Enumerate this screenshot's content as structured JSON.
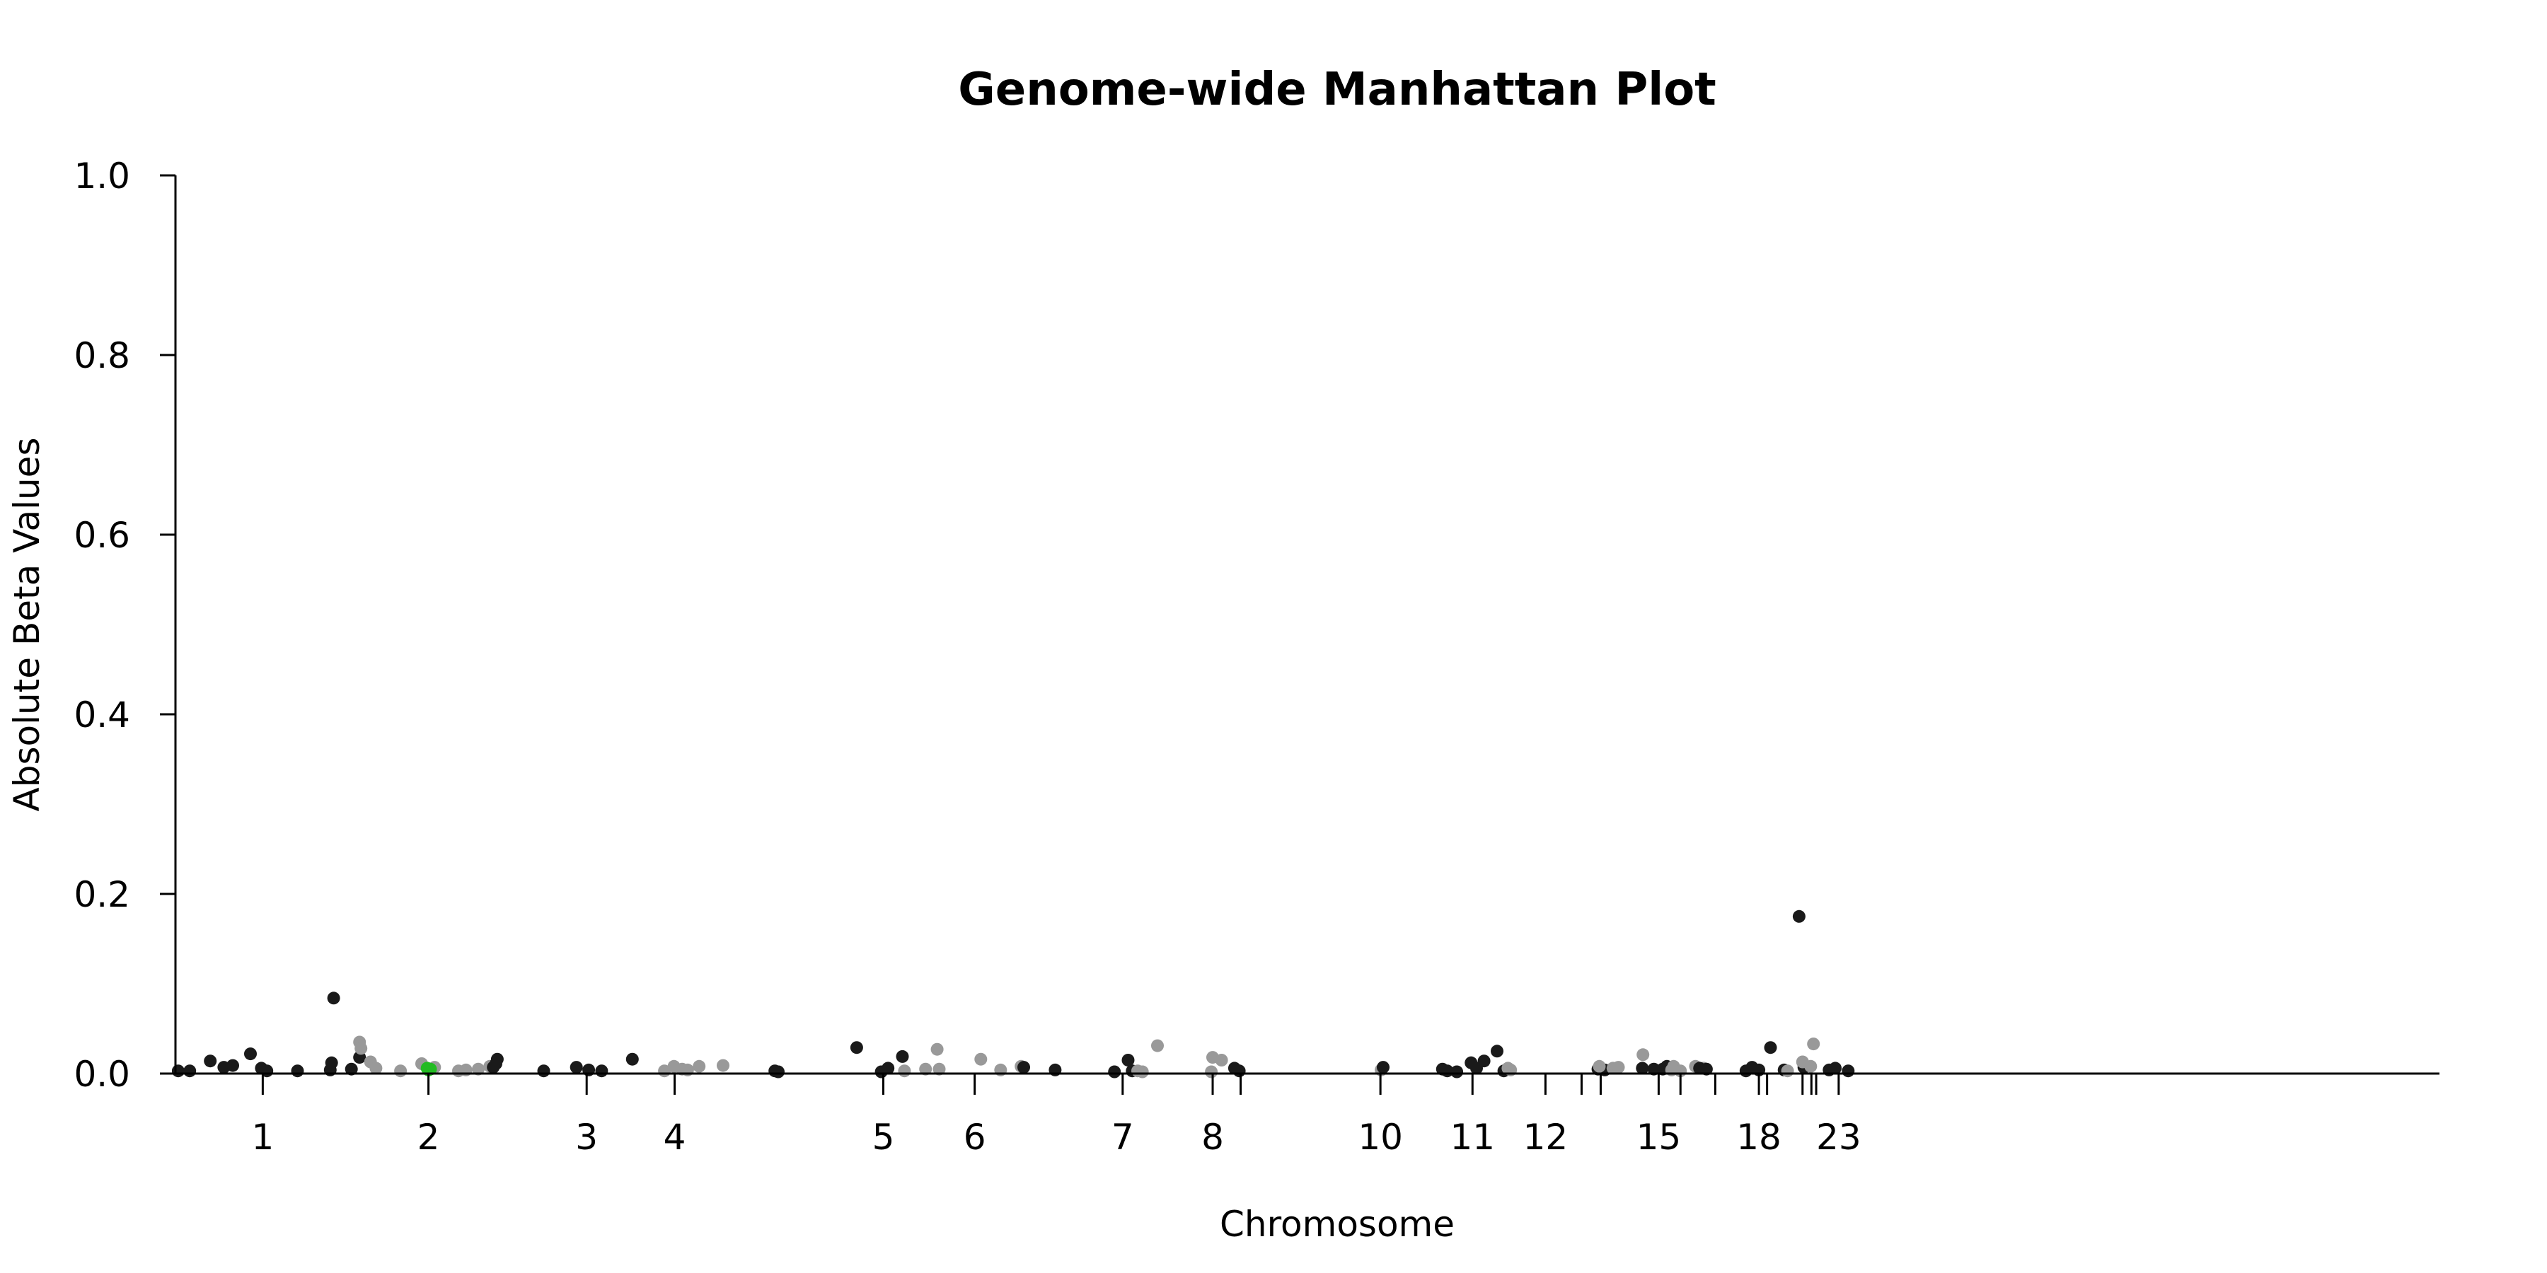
{
  "chart_data": {
    "type": "scatter",
    "title": "Genome-wide Manhattan Plot",
    "xlabel": "Chromosome",
    "ylabel": "Absolute Beta Values",
    "ylim": [
      0,
      1
    ],
    "yticks": [
      0.0,
      0.2,
      0.4,
      0.6,
      0.8,
      1.0
    ],
    "ytick_labels": [
      "0.0",
      "0.2",
      "0.4",
      "0.6",
      "0.8",
      "1.0"
    ],
    "grid": false,
    "legend": "none",
    "colors": {
      "odd": "#1a1a1a",
      "even": "#999999",
      "highlight": "#22bb22"
    },
    "chromosomes": [
      {
        "chr": "1",
        "start": 0,
        "end": 249,
        "label": "1"
      },
      {
        "chr": "2",
        "start": 249,
        "end": 492,
        "label": "2"
      },
      {
        "chr": "3",
        "start": 492,
        "end": 690,
        "label": "3"
      },
      {
        "chr": "4",
        "start": 690,
        "end": 880,
        "label": "4"
      },
      {
        "chr": "5",
        "start": 880,
        "end": 1062,
        "label": "5"
      },
      {
        "chr": "6",
        "start": 1062,
        "end": 1233,
        "label": "6"
      },
      {
        "chr": "7",
        "start": 1233,
        "end": 1392,
        "label": "7"
      },
      {
        "chr": "8",
        "start": 1392,
        "end": 1537,
        "label": "8"
      },
      {
        "chr": "9",
        "start": 1537,
        "end": 1675,
        "label": ""
      },
      {
        "chr": "10",
        "start": 1675,
        "end": 1809,
        "label": "10"
      },
      {
        "chr": "11",
        "start": 1809,
        "end": 1944,
        "label": "11"
      },
      {
        "chr": "12",
        "start": 1944,
        "end": 2077,
        "label": "12"
      },
      {
        "chr": "13",
        "start": 2077,
        "end": 2192,
        "label": ""
      },
      {
        "chr": "14",
        "start": 2192,
        "end": 2299,
        "label": ""
      },
      {
        "chr": "15",
        "start": 2299,
        "end": 2401,
        "label": "15"
      },
      {
        "chr": "16",
        "start": 2401,
        "end": 2491,
        "label": ""
      },
      {
        "chr": "17",
        "start": 2491,
        "end": 2574,
        "label": ""
      },
      {
        "chr": "18",
        "start": 2574,
        "end": 2654,
        "label": "18"
      },
      {
        "chr": "19",
        "start": 2654,
        "end": 2713,
        "label": ""
      },
      {
        "chr": "20",
        "start": 2713,
        "end": 2777,
        "label": ""
      },
      {
        "chr": "21",
        "start": 2777,
        "end": 2824,
        "label": ""
      },
      {
        "chr": "22",
        "start": 2824,
        "end": 2875,
        "label": ""
      },
      {
        "chr": "23",
        "start": 2875,
        "end": 3031,
        "label": "23"
      }
    ],
    "x_range": [
      -128,
      3192
    ],
    "tick_positions": [
      0,
      243,
      475,
      604,
      910,
      1044,
      1261,
      1393,
      1434,
      1639,
      1774,
      1881,
      1934,
      1962,
      2047,
      2079,
      2130,
      2194,
      2206,
      2258,
      2271,
      2278,
      2311
    ],
    "points": [
      {
        "x": -124,
        "y": 0.003,
        "g": 0
      },
      {
        "x": -107,
        "y": 0.003,
        "g": 0
      },
      {
        "x": -77,
        "y": 0.014,
        "g": 0
      },
      {
        "x": -57,
        "y": 0.007,
        "g": 0
      },
      {
        "x": -44,
        "y": 0.009,
        "g": 0
      },
      {
        "x": -18,
        "y": 0.022,
        "g": 0
      },
      {
        "x": -2,
        "y": 0.006,
        "g": 0
      },
      {
        "x": 6,
        "y": 0.003,
        "g": 0
      },
      {
        "x": 51,
        "y": 0.003,
        "g": 0
      },
      {
        "x": 99,
        "y": 0.004,
        "g": 0
      },
      {
        "x": 101,
        "y": 0.012,
        "g": 0
      },
      {
        "x": 104,
        "y": 0.084,
        "g": 0
      },
      {
        "x": 130,
        "y": 0.005,
        "g": 0
      },
      {
        "x": 142,
        "y": 0.018,
        "g": 0
      },
      {
        "x": 142,
        "y": 0.035,
        "g": 1
      },
      {
        "x": 144,
        "y": 0.028,
        "g": 1
      },
      {
        "x": 158,
        "y": 0.013,
        "g": 1
      },
      {
        "x": 166,
        "y": 0.006,
        "g": 1
      },
      {
        "x": 202,
        "y": 0.003,
        "g": 1
      },
      {
        "x": 233,
        "y": 0.011,
        "g": 1
      },
      {
        "x": 252,
        "y": 0.007,
        "g": 1
      },
      {
        "x": 287,
        "y": 0.003,
        "g": 1
      },
      {
        "x": 298,
        "y": 0.004,
        "g": 1
      },
      {
        "x": 316,
        "y": 0.005,
        "g": 1
      },
      {
        "x": 333,
        "y": 0.008,
        "g": 1
      },
      {
        "x": 241,
        "y": 0.006,
        "g": 2
      },
      {
        "x": 243,
        "y": 0.004,
        "g": 2
      },
      {
        "x": 246,
        "y": 0.005,
        "g": 2
      },
      {
        "x": 338,
        "y": 0.007,
        "g": 0
      },
      {
        "x": 342,
        "y": 0.011,
        "g": 0
      },
      {
        "x": 344,
        "y": 0.016,
        "g": 0
      },
      {
        "x": 412,
        "y": 0.003,
        "g": 0
      },
      {
        "x": 460,
        "y": 0.007,
        "g": 0
      },
      {
        "x": 478,
        "y": 0.004,
        "g": 0
      },
      {
        "x": 497,
        "y": 0.003,
        "g": 0
      },
      {
        "x": 542,
        "y": 0.016,
        "g": 0
      },
      {
        "x": 589,
        "y": 0.003,
        "g": 1
      },
      {
        "x": 603,
        "y": 0.008,
        "g": 1
      },
      {
        "x": 615,
        "y": 0.005,
        "g": 1
      },
      {
        "x": 623,
        "y": 0.004,
        "g": 1
      },
      {
        "x": 640,
        "y": 0.008,
        "g": 1
      },
      {
        "x": 675,
        "y": 0.009,
        "g": 1
      },
      {
        "x": 751,
        "y": 0.003,
        "g": 0
      },
      {
        "x": 756,
        "y": 0.002,
        "g": 0
      },
      {
        "x": 871,
        "y": 0.029,
        "g": 0
      },
      {
        "x": 907,
        "y": 0.002,
        "g": 0
      },
      {
        "x": 917,
        "y": 0.006,
        "g": 0
      },
      {
        "x": 938,
        "y": 0.019,
        "g": 0
      },
      {
        "x": 941,
        "y": 0.003,
        "g": 1
      },
      {
        "x": 972,
        "y": 0.005,
        "g": 1
      },
      {
        "x": 989,
        "y": 0.027,
        "g": 1
      },
      {
        "x": 992,
        "y": 0.005,
        "g": 1
      },
      {
        "x": 1053,
        "y": 0.016,
        "g": 1
      },
      {
        "x": 1082,
        "y": 0.004,
        "g": 1
      },
      {
        "x": 1112,
        "y": 0.008,
        "g": 1
      },
      {
        "x": 1116,
        "y": 0.007,
        "g": 0
      },
      {
        "x": 1162,
        "y": 0.004,
        "g": 0
      },
      {
        "x": 1249,
        "y": 0.002,
        "g": 0
      },
      {
        "x": 1269,
        "y": 0.015,
        "g": 0
      },
      {
        "x": 1275,
        "y": 0.003,
        "g": 0
      },
      {
        "x": 1283,
        "y": 0.003,
        "g": 1
      },
      {
        "x": 1290,
        "y": 0.002,
        "g": 1
      },
      {
        "x": 1312,
        "y": 0.031,
        "g": 1
      },
      {
        "x": 1391,
        "y": 0.002,
        "g": 1
      },
      {
        "x": 1393,
        "y": 0.018,
        "g": 1
      },
      {
        "x": 1406,
        "y": 0.015,
        "g": 1
      },
      {
        "x": 1425,
        "y": 0.006,
        "g": 0
      },
      {
        "x": 1432,
        "y": 0.003,
        "g": 0
      },
      {
        "x": 1640,
        "y": 0.004,
        "g": 1
      },
      {
        "x": 1643,
        "y": 0.007,
        "g": 0
      },
      {
        "x": 1730,
        "y": 0.005,
        "g": 0
      },
      {
        "x": 1737,
        "y": 0.003,
        "g": 0
      },
      {
        "x": 1751,
        "y": 0.002,
        "g": 0
      },
      {
        "x": 1772,
        "y": 0.012,
        "g": 1
      },
      {
        "x": 1772,
        "y": 0.012,
        "g": 0
      },
      {
        "x": 1780,
        "y": 0.006,
        "g": 0
      },
      {
        "x": 1791,
        "y": 0.014,
        "g": 0
      },
      {
        "x": 1810,
        "y": 0.025,
        "g": 0
      },
      {
        "x": 1820,
        "y": 0.003,
        "g": 0
      },
      {
        "x": 1826,
        "y": 0.006,
        "g": 1
      },
      {
        "x": 1830,
        "y": 0.004,
        "g": 1
      },
      {
        "x": 1958,
        "y": 0.005,
        "g": 0
      },
      {
        "x": 1968,
        "y": 0.004,
        "g": 0
      },
      {
        "x": 1960,
        "y": 0.008,
        "g": 1
      },
      {
        "x": 1980,
        "y": 0.006,
        "g": 1
      },
      {
        "x": 1988,
        "y": 0.007,
        "g": 1
      },
      {
        "x": 2023,
        "y": 0.006,
        "g": 0
      },
      {
        "x": 2040,
        "y": 0.005,
        "g": 0
      },
      {
        "x": 2053,
        "y": 0.005,
        "g": 0
      },
      {
        "x": 2059,
        "y": 0.008,
        "g": 0
      },
      {
        "x": 2024,
        "y": 0.021,
        "g": 1
      },
      {
        "x": 2066,
        "y": 0.004,
        "g": 1
      },
      {
        "x": 2069,
        "y": 0.008,
        "g": 1
      },
      {
        "x": 2079,
        "y": 0.003,
        "g": 1
      },
      {
        "x": 2101,
        "y": 0.008,
        "g": 1
      },
      {
        "x": 2113,
        "y": 0.006,
        "g": 1
      },
      {
        "x": 2107,
        "y": 0.006,
        "g": 0
      },
      {
        "x": 2117,
        "y": 0.005,
        "g": 0
      },
      {
        "x": 2175,
        "y": 0.003,
        "g": 0
      },
      {
        "x": 2184,
        "y": 0.007,
        "g": 0
      },
      {
        "x": 2194,
        "y": 0.004,
        "g": 0
      },
      {
        "x": 2211,
        "y": 0.029,
        "g": 0
      },
      {
        "x": 2231,
        "y": 0.004,
        "g": 0
      },
      {
        "x": 2253,
        "y": 0.175,
        "g": 0
      },
      {
        "x": 2260,
        "y": 0.007,
        "g": 0
      },
      {
        "x": 2236,
        "y": 0.003,
        "g": 1
      },
      {
        "x": 2258,
        "y": 0.013,
        "g": 1
      },
      {
        "x": 2270,
        "y": 0.008,
        "g": 1
      },
      {
        "x": 2274,
        "y": 0.033,
        "g": 1
      },
      {
        "x": 2297,
        "y": 0.004,
        "g": 0
      },
      {
        "x": 2306,
        "y": 0.006,
        "g": 0
      },
      {
        "x": 2325,
        "y": 0.003,
        "g": 0
      }
    ]
  }
}
